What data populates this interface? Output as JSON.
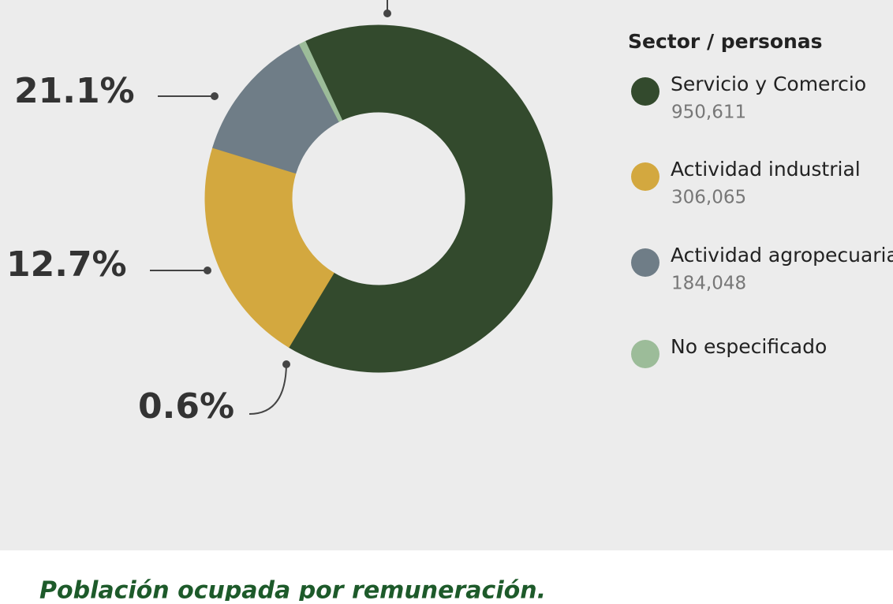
{
  "chart_data": {
    "type": "pie",
    "title": "Población ocupada por remuneración.",
    "legend_title": "Sector / personas",
    "categories": [
      "Servicio y Comercio",
      "Actividad industrial",
      "Actividad agropecuaria",
      "No especificado"
    ],
    "values": [
      65.6,
      21.1,
      12.7,
      0.6
    ],
    "value_labels": [
      null,
      "21.1%",
      "12.7%",
      "0.6%"
    ],
    "count_labels": [
      "950,611",
      "306,065",
      "184,048",
      null
    ],
    "colors": [
      "#334a2d",
      "#d3a83f",
      "#6f7d87",
      "#9cbc99"
    ],
    "legend": "right"
  }
}
